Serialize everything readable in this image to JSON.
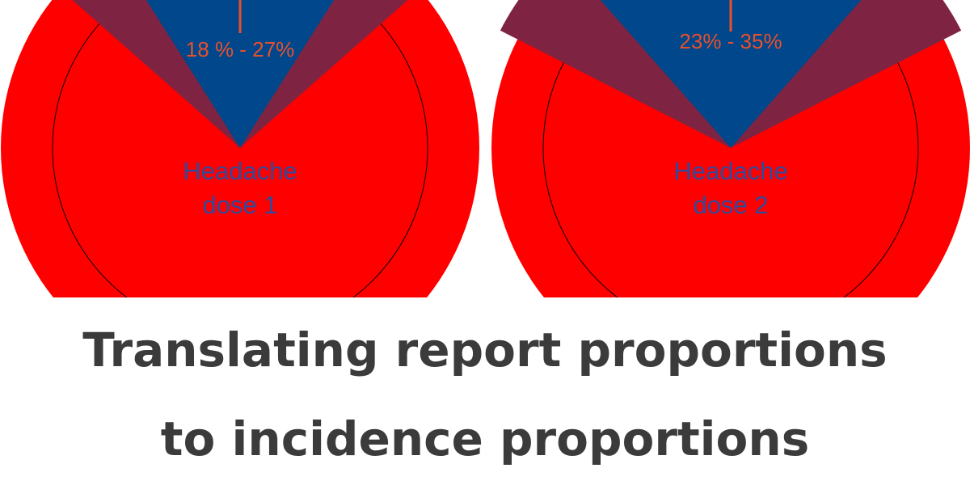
{
  "title": {
    "line1": "Translating report proportions",
    "line2": "to incidence proportions"
  },
  "colors": {
    "outer": "#ff0000",
    "inner": "#ff0000",
    "range_wedge": "#7e2442",
    "core_wedge": "#00478b",
    "range_text": "#e8502c",
    "name_text": "#2e4a9c",
    "marker": "#e8502c",
    "title_text": "#3b3b3b"
  },
  "chart_data": [
    {
      "type": "pie",
      "name_lines": [
        "Headache",
        "dose 1"
      ],
      "range_label": "18 % - 27%",
      "range_low_pct": 18,
      "range_high_pct": 27
    },
    {
      "type": "pie",
      "name_lines": [
        "Headache",
        "dose 2"
      ],
      "range_label": "23% - 35%",
      "range_low_pct": 23,
      "range_high_pct": 35
    }
  ]
}
